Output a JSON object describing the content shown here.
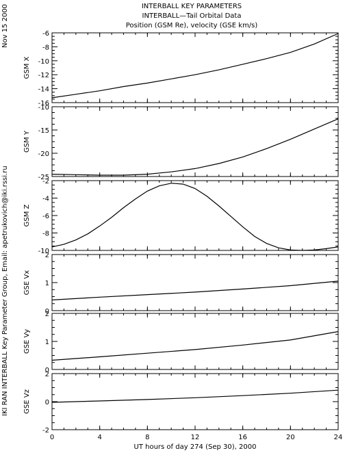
{
  "header": {
    "line1": "INTERBALL KEY PARAMETERS",
    "line2": "INTERBALL—Tail Orbital Data",
    "line3": "Position (GSM Re), velocity (GSE km/s)"
  },
  "side": {
    "date": "Nov 15 2000",
    "credit": "IKI RAN INTERBALL Key Parameter Group, Email: apetrukovich@iki.rssi.ru"
  },
  "colors": {
    "line": "#000000",
    "background": "#ffffff"
  },
  "chart_data": [
    {
      "type": "line",
      "ylabel": "GSM X",
      "ylim": [
        -16,
        -6
      ],
      "yticks": [
        -16,
        -14,
        -12,
        -10,
        -8,
        -6
      ],
      "x": [
        0,
        2,
        4,
        6,
        8,
        10,
        12,
        14,
        16,
        18,
        20,
        22,
        24
      ],
      "series": [
        {
          "values": [
            -15.3,
            -14.8,
            -14.3,
            -13.7,
            -13.2,
            -12.6,
            -12.0,
            -11.3,
            -10.5,
            -9.7,
            -8.8,
            -7.6,
            -6.1
          ]
        }
      ]
    },
    {
      "type": "line",
      "ylabel": "GSM Y",
      "ylim": [
        -25,
        -10
      ],
      "yticks": [
        -25,
        -20,
        -15,
        -10
      ],
      "x": [
        0,
        2,
        4,
        6,
        8,
        10,
        12,
        14,
        16,
        18,
        20,
        22,
        24
      ],
      "series": [
        {
          "values": [
            -24.5,
            -24.6,
            -24.7,
            -24.7,
            -24.5,
            -24.0,
            -23.3,
            -22.2,
            -20.8,
            -19.0,
            -17.0,
            -14.8,
            -12.6
          ]
        }
      ]
    },
    {
      "type": "line",
      "ylabel": "GSM Z",
      "ylim": [
        -10,
        -2
      ],
      "yticks": [
        -10,
        -8,
        -6,
        -4,
        -2
      ],
      "x": [
        0,
        1,
        2,
        3,
        4,
        5,
        6,
        7,
        8,
        9,
        10,
        11,
        12,
        13,
        14,
        15,
        16,
        17,
        18,
        19,
        20,
        21,
        22,
        23,
        24
      ],
      "series": [
        {
          "values": [
            -9.6,
            -9.3,
            -8.8,
            -8.1,
            -7.2,
            -6.2,
            -5.1,
            -4.1,
            -3.2,
            -2.6,
            -2.3,
            -2.4,
            -2.9,
            -3.8,
            -4.9,
            -6.1,
            -7.3,
            -8.4,
            -9.2,
            -9.7,
            -9.95,
            -10.0,
            -9.95,
            -9.8,
            -9.6
          ]
        }
      ]
    },
    {
      "type": "line",
      "ylabel": "GSE Vx",
      "ylim": [
        0,
        2
      ],
      "yticks": [
        0,
        1,
        2
      ],
      "x": [
        0,
        4,
        8,
        12,
        16,
        20,
        24
      ],
      "series": [
        {
          "values": [
            0.38,
            0.48,
            0.57,
            0.66,
            0.77,
            0.89,
            1.05
          ]
        }
      ]
    },
    {
      "type": "line",
      "ylabel": "GSE Vy",
      "ylim": [
        0,
        2
      ],
      "yticks": [
        0,
        1,
        2
      ],
      "x": [
        0,
        4,
        8,
        12,
        16,
        20,
        24
      ],
      "series": [
        {
          "values": [
            0.33,
            0.45,
            0.58,
            0.71,
            0.87,
            1.05,
            1.35
          ]
        }
      ]
    },
    {
      "type": "line",
      "ylabel": "GSE Vz",
      "ylim": [
        -2,
        2
      ],
      "yticks": [
        -2,
        0,
        2
      ],
      "x": [
        0,
        4,
        8,
        12,
        16,
        20,
        24
      ],
      "series": [
        {
          "values": [
            -0.05,
            0.05,
            0.15,
            0.28,
            0.43,
            0.6,
            0.82
          ]
        }
      ]
    }
  ],
  "x_axis": {
    "label": "UT hours of day 274 (Sep 30), 2000",
    "xlim": [
      0,
      24
    ],
    "ticks": [
      "0",
      "4",
      "8",
      "12",
      "16",
      "20",
      "24"
    ]
  }
}
